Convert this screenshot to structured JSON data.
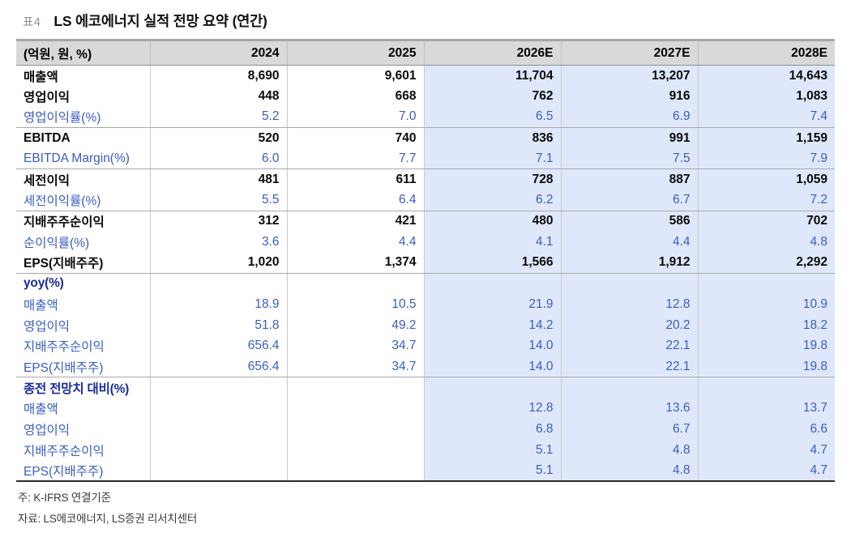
{
  "title": {
    "tag": "표4",
    "text": "LS 에코에너지 실적 전망 요약 (연간)"
  },
  "table": {
    "unit_label": "(억원, 원, %)",
    "columns": [
      "2024",
      "2025",
      "2026E",
      "2027E",
      "2028E"
    ],
    "estimate_columns": [
      "2026E",
      "2027E",
      "2028E"
    ],
    "rows": [
      {
        "label": "매출액",
        "style": "bold-black",
        "values": [
          "8,690",
          "9,601",
          "11,704",
          "13,207",
          "14,643"
        ],
        "sep_after": false
      },
      {
        "label": "영업이익",
        "style": "bold-black",
        "values": [
          "448",
          "668",
          "762",
          "916",
          "1,083"
        ],
        "sep_after": false
      },
      {
        "label": "영업이익률(%)",
        "style": "blue",
        "values": [
          "5.2",
          "7.0",
          "6.5",
          "6.9",
          "7.4"
        ],
        "sep_after": true
      },
      {
        "label": "EBITDA",
        "style": "bold-black",
        "values": [
          "520",
          "740",
          "836",
          "991",
          "1,159"
        ],
        "sep_after": false
      },
      {
        "label": "EBITDA Margin(%)",
        "style": "blue",
        "values": [
          "6.0",
          "7.7",
          "7.1",
          "7.5",
          "7.9"
        ],
        "sep_after": true
      },
      {
        "label": "세전이익",
        "style": "bold-black",
        "values": [
          "481",
          "611",
          "728",
          "887",
          "1,059"
        ],
        "sep_after": false
      },
      {
        "label": "세전이익률(%)",
        "style": "blue",
        "values": [
          "5.5",
          "6.4",
          "6.2",
          "6.7",
          "7.2"
        ],
        "sep_after": true
      },
      {
        "label": "지배주주순이익",
        "style": "bold-black",
        "values": [
          "312",
          "421",
          "480",
          "586",
          "702"
        ],
        "sep_after": false
      },
      {
        "label": "순이익률(%)",
        "style": "blue",
        "values": [
          "3.6",
          "4.4",
          "4.1",
          "4.4",
          "4.8"
        ],
        "sep_after": false
      },
      {
        "label": "EPS(지배주주)",
        "style": "bold-black",
        "values": [
          "1,020",
          "1,374",
          "1,566",
          "1,912",
          "2,292"
        ],
        "sep_after": true
      },
      {
        "label": "yoy(%)",
        "style": "section",
        "values": [
          "",
          "",
          "",
          "",
          ""
        ],
        "sep_after": false
      },
      {
        "label": "매출액",
        "style": "blue",
        "values": [
          "18.9",
          "10.5",
          "21.9",
          "12.8",
          "10.9"
        ],
        "sep_after": false
      },
      {
        "label": "영업이익",
        "style": "blue",
        "values": [
          "51.8",
          "49.2",
          "14.2",
          "20.2",
          "18.2"
        ],
        "sep_after": false
      },
      {
        "label": "지배주주순이익",
        "style": "blue",
        "values": [
          "656.4",
          "34.7",
          "14.0",
          "22.1",
          "19.8"
        ],
        "sep_after": false
      },
      {
        "label": "EPS(지배주주)",
        "style": "blue",
        "values": [
          "656.4",
          "34.7",
          "14.0",
          "22.1",
          "19.8"
        ],
        "sep_after": true
      },
      {
        "label": "종전 전망치 대비(%)",
        "style": "section",
        "values": [
          "",
          "",
          "",
          "",
          ""
        ],
        "sep_after": false
      },
      {
        "label": "매출액",
        "style": "blue",
        "values": [
          "",
          "",
          "12.8",
          "13.6",
          "13.7"
        ],
        "sep_after": false
      },
      {
        "label": "영업이익",
        "style": "blue",
        "values": [
          "",
          "",
          "6.8",
          "6.7",
          "6.6"
        ],
        "sep_after": false
      },
      {
        "label": "지배주주순이익",
        "style": "blue",
        "values": [
          "",
          "",
          "5.1",
          "4.8",
          "4.7"
        ],
        "sep_after": false
      },
      {
        "label": "EPS(지배주주)",
        "style": "blue",
        "values": [
          "",
          "",
          "5.1",
          "4.8",
          "4.7"
        ],
        "sep_after": false
      }
    ]
  },
  "notes": [
    "주: K-IFRS 연결기준",
    "자료: LS에코에너지, LS증권 리서치센터"
  ],
  "colors": {
    "value_blue": "#3a5cc5",
    "section_navy": "#192b9e",
    "estimate_bg": "#dfe8fb",
    "header_bg": "#d9d9d9"
  }
}
